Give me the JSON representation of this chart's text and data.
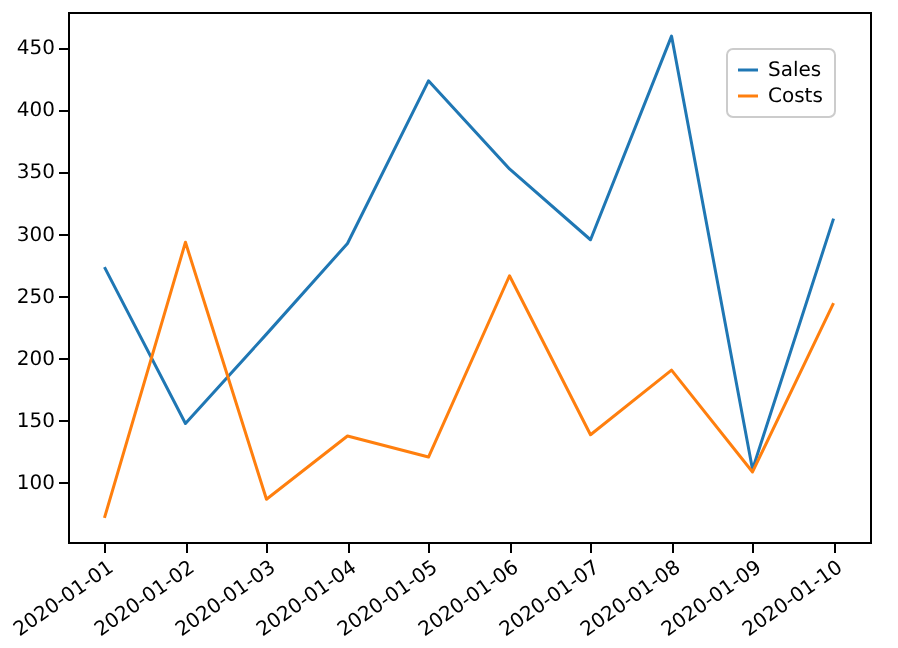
{
  "chart_data": {
    "type": "line",
    "x": [
      "2020-01-01",
      "2020-01-02",
      "2020-01-03",
      "2020-01-04",
      "2020-01-05",
      "2020-01-06",
      "2020-01-07",
      "2020-01-08",
      "2020-01-09",
      "2020-01-10"
    ],
    "series": [
      {
        "name": "Sales",
        "color": "#1f77b4",
        "values": [
          273,
          147,
          219,
          292,
          423,
          352,
          295,
          459,
          110,
          312
        ]
      },
      {
        "name": "Costs",
        "color": "#ff7f0e",
        "values": [
          71,
          293,
          86,
          137,
          120,
          266,
          138,
          190,
          108,
          244
        ]
      }
    ],
    "xlim": [
      "2019-12-31T13:12",
      "2020-01-10T10:48"
    ],
    "xticks": [
      "2020-01-01",
      "2020-01-02",
      "2020-01-03",
      "2020-01-04",
      "2020-01-05",
      "2020-01-06",
      "2020-01-07",
      "2020-01-08",
      "2020-01-09",
      "2020-01-10"
    ],
    "ylim": [
      51.6,
      478.4
    ],
    "yticks": [
      100,
      150,
      200,
      250,
      300,
      350,
      400,
      450
    ],
    "grid": false,
    "legend": "top right"
  }
}
